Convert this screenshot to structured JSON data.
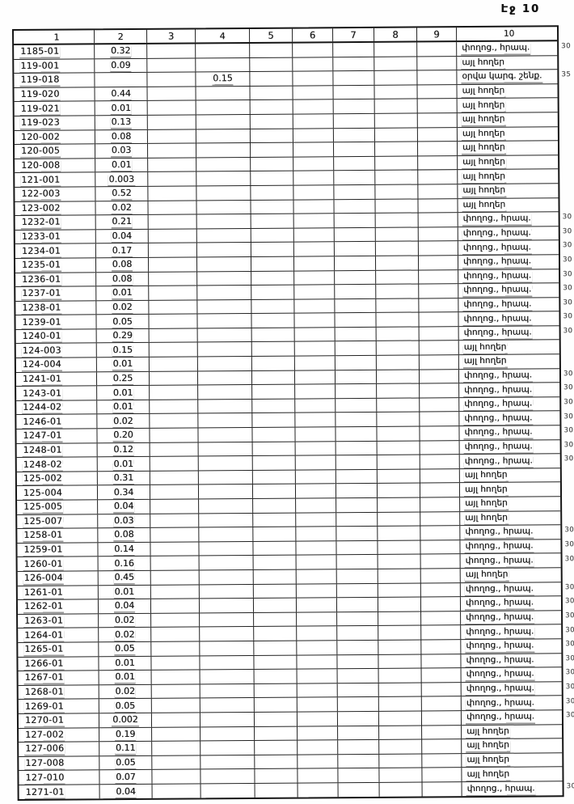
{
  "page": {
    "header_label": "Էջ 10"
  },
  "table": {
    "column_headers": [
      "1",
      "2",
      "3",
      "4",
      "5",
      "6",
      "7",
      "8",
      "9",
      "10"
    ],
    "rows": [
      {
        "code": "1185-01",
        "area": "0.32",
        "col4": "",
        "land_use": "փողոց., հրապ.",
        "note": "30"
      },
      {
        "code": "119-001",
        "area": "0.09",
        "col4": "",
        "land_use": "այլ հողեր",
        "note": ""
      },
      {
        "code": "119-018",
        "area": "",
        "col4": "0.15",
        "land_use": "օրվա կարգ. շենք.",
        "note": "35"
      },
      {
        "code": "119-020",
        "area": "0.44",
        "col4": "",
        "land_use": "այլ հողեր",
        "note": ""
      },
      {
        "code": "119-021",
        "area": "0.01",
        "col4": "",
        "land_use": "այլ հողեր",
        "note": ""
      },
      {
        "code": "119-023",
        "area": "0.13",
        "col4": "",
        "land_use": "այլ հողեր",
        "note": ""
      },
      {
        "code": "120-002",
        "area": "0.08",
        "col4": "",
        "land_use": "այլ հողեր",
        "note": ""
      },
      {
        "code": "120-005",
        "area": "0.03",
        "col4": "",
        "land_use": "այլ հողեր",
        "note": ""
      },
      {
        "code": "120-008",
        "area": "0.01",
        "col4": "",
        "land_use": "այլ հողեր",
        "note": ""
      },
      {
        "code": "121-001",
        "area": "0.003",
        "col4": "",
        "land_use": "այլ հողեր",
        "note": ""
      },
      {
        "code": "122-003",
        "area": "0.52",
        "col4": "",
        "land_use": "այլ հողեր",
        "note": ""
      },
      {
        "code": "123-002",
        "area": "0.02",
        "col4": "",
        "land_use": "այլ հողեր",
        "note": ""
      },
      {
        "code": "1232-01",
        "area": "0.21",
        "col4": "",
        "land_use": "փողոց., հրապ.",
        "note": "30"
      },
      {
        "code": "1233-01",
        "area": "0.04",
        "col4": "",
        "land_use": "փողոց., հրապ.",
        "note": "30"
      },
      {
        "code": "1234-01",
        "area": "0.17",
        "col4": "",
        "land_use": "փողոց., հրապ.",
        "note": "30"
      },
      {
        "code": "1235-01",
        "area": "0.08",
        "col4": "",
        "land_use": "փողոց., հրապ.",
        "note": "30"
      },
      {
        "code": "1236-01",
        "area": "0.08",
        "col4": "",
        "land_use": "փողոց., հրապ.",
        "note": "30"
      },
      {
        "code": "1237-01",
        "area": "0.01",
        "col4": "",
        "land_use": "փողոց., հրապ.",
        "note": "30"
      },
      {
        "code": "1238-01",
        "area": "0.02",
        "col4": "",
        "land_use": "փողոց., հրապ.",
        "note": "30"
      },
      {
        "code": "1239-01",
        "area": "0.05",
        "col4": "",
        "land_use": "փողոց., հրապ.",
        "note": "30"
      },
      {
        "code": "1240-01",
        "area": "0.29",
        "col4": "",
        "land_use": "փողոց., հրապ.",
        "note": "30"
      },
      {
        "code": "124-003",
        "area": "0.15",
        "col4": "",
        "land_use": "այլ հողեր",
        "note": ""
      },
      {
        "code": "124-004",
        "area": "0.01",
        "col4": "",
        "land_use": "այլ հողեր",
        "note": ""
      },
      {
        "code": "1241-01",
        "area": "0.25",
        "col4": "",
        "land_use": "փողոց., հրապ.",
        "note": "30"
      },
      {
        "code": "1243-01",
        "area": "0.01",
        "col4": "",
        "land_use": "փողոց., հրապ.",
        "note": "30"
      },
      {
        "code": "1244-02",
        "area": "0.01",
        "col4": "",
        "land_use": "փողոց., հրապ.",
        "note": "30"
      },
      {
        "code": "1246-01",
        "area": "0.02",
        "col4": "",
        "land_use": "փողոց., հրապ.",
        "note": "30"
      },
      {
        "code": "1247-01",
        "area": "0.20",
        "col4": "",
        "land_use": "փողոց., հրապ.",
        "note": "30"
      },
      {
        "code": "1248-01",
        "area": "0.12",
        "col4": "",
        "land_use": "փողոց., հրապ.",
        "note": "30"
      },
      {
        "code": "1248-02",
        "area": "0.01",
        "col4": "",
        "land_use": "փողոց., հրապ.",
        "note": "30"
      },
      {
        "code": "125-002",
        "area": "0.31",
        "col4": "",
        "land_use": "այլ հողեր",
        "note": ""
      },
      {
        "code": "125-004",
        "area": "0.34",
        "col4": "",
        "land_use": "այլ հողեր",
        "note": ""
      },
      {
        "code": "125-005",
        "area": "0.04",
        "col4": "",
        "land_use": "այլ հողեր",
        "note": ""
      },
      {
        "code": "125-007",
        "area": "0.03",
        "col4": "",
        "land_use": "այլ հողեր",
        "note": ""
      },
      {
        "code": "1258-01",
        "area": "0.08",
        "col4": "",
        "land_use": "փողոց., հրապ.",
        "note": "30"
      },
      {
        "code": "1259-01",
        "area": "0.14",
        "col4": "",
        "land_use": "փողոց., հրապ.",
        "note": "30"
      },
      {
        "code": "1260-01",
        "area": "0.16",
        "col4": "",
        "land_use": "փողոց., հրապ.",
        "note": "30"
      },
      {
        "code": "126-004",
        "area": "0.45",
        "col4": "",
        "land_use": "այլ հողեր",
        "note": ""
      },
      {
        "code": "1261-01",
        "area": "0.01",
        "col4": "",
        "land_use": "փողոց., հրապ.",
        "note": "30"
      },
      {
        "code": "1262-01",
        "area": "0.04",
        "col4": "",
        "land_use": "փողոց., հրապ.",
        "note": "30"
      },
      {
        "code": "1263-01",
        "area": "0.02",
        "col4": "",
        "land_use": "փողոց., հրապ.",
        "note": "30"
      },
      {
        "code": "1264-01",
        "area": "0.02",
        "col4": "",
        "land_use": "փողոց., հրապ.",
        "note": "30"
      },
      {
        "code": "1265-01",
        "area": "0.05",
        "col4": "",
        "land_use": "փողոց., հրապ.",
        "note": "30"
      },
      {
        "code": "1266-01",
        "area": "0.01",
        "col4": "",
        "land_use": "փողոց., հրապ.",
        "note": "30"
      },
      {
        "code": "1267-01",
        "area": "0.01",
        "col4": "",
        "land_use": "փողոց., հրապ.",
        "note": "30"
      },
      {
        "code": "1268-01",
        "area": "0.02",
        "col4": "",
        "land_use": "փողոց., հրապ.",
        "note": "30"
      },
      {
        "code": "1269-01",
        "area": "0.05",
        "col4": "",
        "land_use": "փողոց., հրապ.",
        "note": "30"
      },
      {
        "code": "1270-01",
        "area": "0.002",
        "col4": "",
        "land_use": "փողոց., հրապ.",
        "note": "30"
      },
      {
        "code": "127-002",
        "area": "0.19",
        "col4": "",
        "land_use": "այլ հողեր",
        "note": ""
      },
      {
        "code": "127-006",
        "area": "0.11",
        "col4": "",
        "land_use": "այլ հողեր",
        "note": ""
      },
      {
        "code": "127-008",
        "area": "0.05",
        "col4": "",
        "land_use": "այլ հողեր",
        "note": ""
      },
      {
        "code": "127-010",
        "area": "0.07",
        "col4": "",
        "land_use": "այլ հողեր",
        "note": ""
      },
      {
        "code": "1271-01",
        "area": "0.04",
        "col4": "",
        "land_use": "փողոց., հրապ.",
        "note": "30"
      }
    ]
  }
}
